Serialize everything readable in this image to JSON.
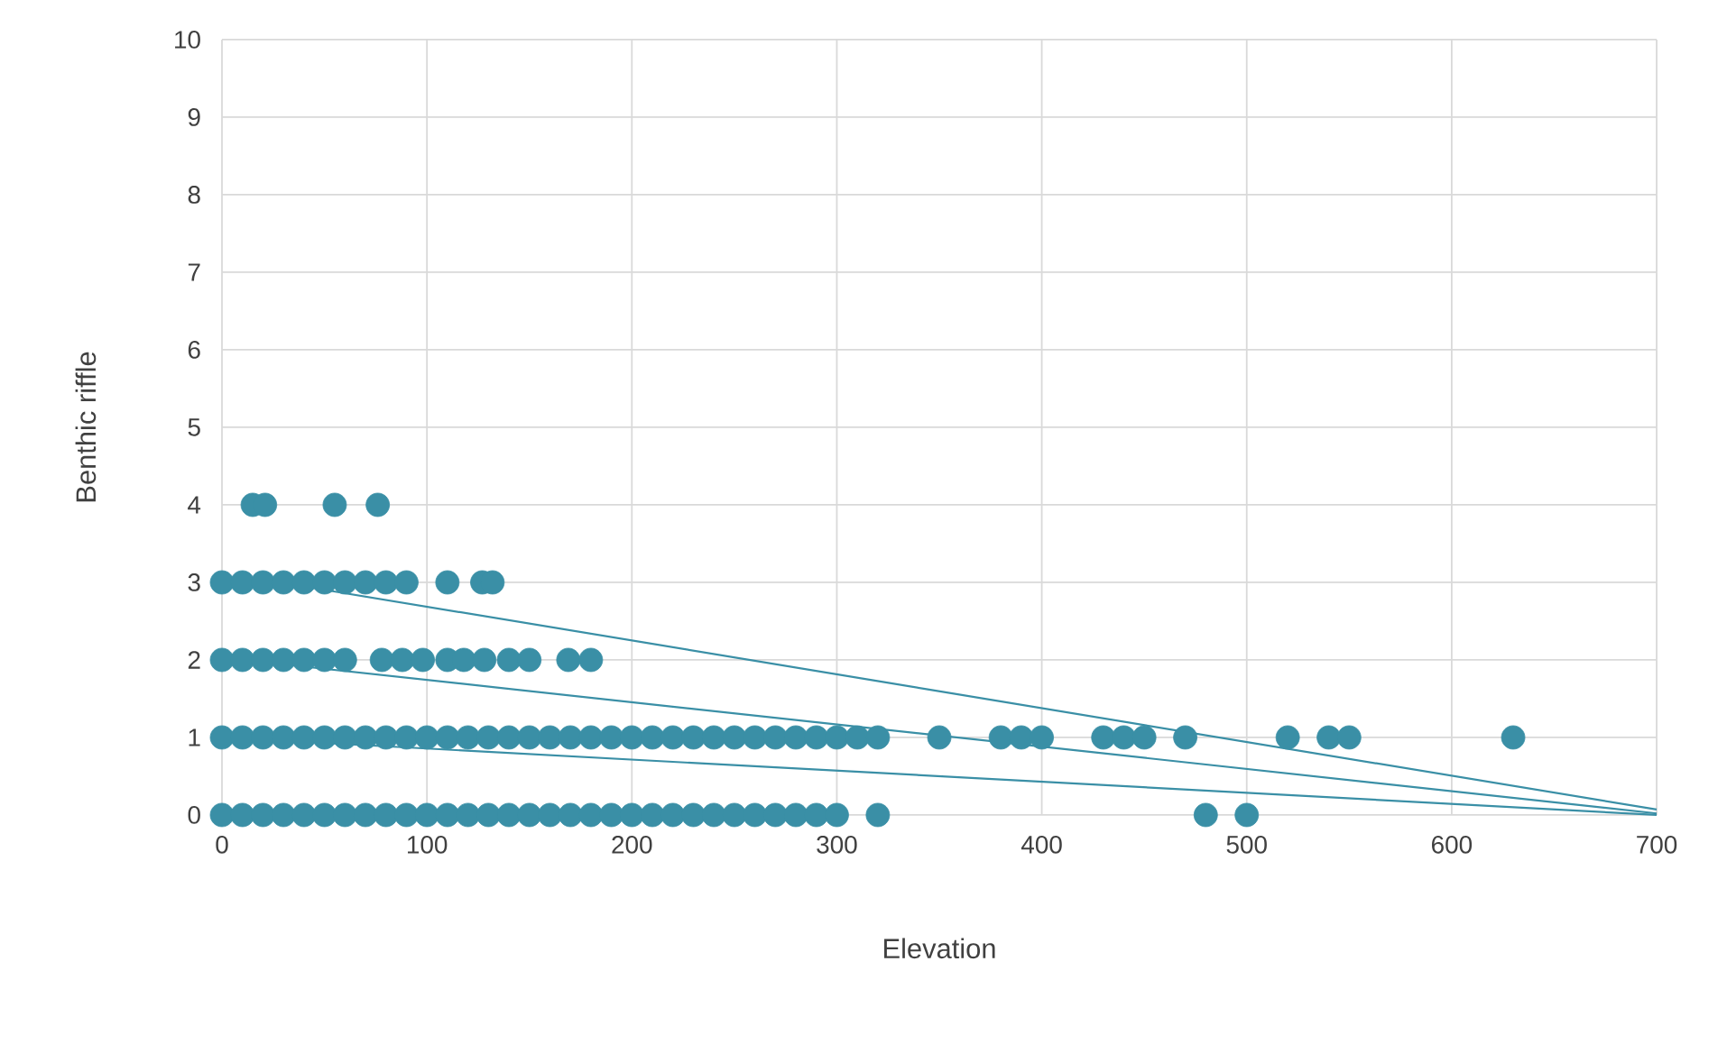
{
  "chart_data": {
    "type": "scatter",
    "xlabel": "Elevation",
    "ylabel": "Benthic riffle",
    "xlim": [
      0,
      700
    ],
    "xticks": [
      0,
      100,
      200,
      300,
      400,
      500,
      600,
      700
    ],
    "ylim": [
      0,
      10
    ],
    "yticks": [
      0,
      1,
      2,
      3,
      4,
      5,
      6,
      7,
      8,
      9,
      10
    ],
    "grid": true,
    "marker": "circle",
    "series": [
      {
        "color": "#3a8fa6",
        "x": [
          0,
          10,
          20,
          30,
          40,
          50,
          60,
          70,
          80,
          90,
          100,
          110,
          120,
          130,
          140,
          150,
          160,
          170,
          180,
          190,
          200,
          210,
          220,
          230,
          240,
          250,
          260,
          270,
          280,
          290,
          300,
          320,
          480,
          500
        ],
        "values": [
          0,
          0,
          0,
          0,
          0,
          0,
          0,
          0,
          0,
          0,
          0,
          0,
          0,
          0,
          0,
          0,
          0,
          0,
          0,
          0,
          0,
          0,
          0,
          0,
          0,
          0,
          0,
          0,
          0,
          0,
          0,
          0,
          0,
          0
        ]
      },
      {
        "color": "#3a8fa6",
        "x": [
          0,
          10,
          20,
          30,
          40,
          50,
          60,
          70,
          80,
          90,
          100,
          110,
          120,
          130,
          140,
          150,
          160,
          170,
          180,
          190,
          200,
          210,
          220,
          230,
          240,
          250,
          260,
          270,
          280,
          290,
          300,
          310,
          320,
          350,
          380,
          390,
          400,
          430,
          440,
          450,
          470,
          520,
          540,
          550,
          630
        ],
        "values": [
          1,
          1,
          1,
          1,
          1,
          1,
          1,
          1,
          1,
          1,
          1,
          1,
          1,
          1,
          1,
          1,
          1,
          1,
          1,
          1,
          1,
          1,
          1,
          1,
          1,
          1,
          1,
          1,
          1,
          1,
          1,
          1,
          1,
          1,
          1,
          1,
          1,
          1,
          1,
          1,
          1,
          1,
          1,
          1,
          1
        ]
      },
      {
        "color": "#3a8fa6",
        "x": [
          0,
          10,
          20,
          30,
          40,
          50,
          60,
          78,
          88,
          98,
          110,
          118,
          128,
          140,
          150,
          169,
          180
        ],
        "values": [
          2,
          2,
          2,
          2,
          2,
          2,
          2,
          2,
          2,
          2,
          2,
          2,
          2,
          2,
          2,
          2,
          2
        ]
      },
      {
        "color": "#3a8fa6",
        "x": [
          0,
          10,
          20,
          30,
          40,
          50,
          60,
          70,
          80,
          90,
          110,
          127,
          132
        ],
        "values": [
          3,
          3,
          3,
          3,
          3,
          3,
          3,
          3,
          3,
          3,
          3,
          3,
          3
        ]
      },
      {
        "color": "#3a8fa6",
        "x": [
          15,
          21,
          55,
          76
        ],
        "values": [
          4,
          4,
          4,
          4
        ]
      },
      {
        "type": "line",
        "marker": "none",
        "color": "#3a8fa6",
        "x": [
          28,
          700
        ],
        "values": [
          3,
          0.07
        ]
      },
      {
        "type": "line",
        "marker": "none",
        "color": "#3a8fa6",
        "x": [
          10,
          700
        ],
        "values": [
          2,
          0.02
        ]
      },
      {
        "type": "line",
        "marker": "none",
        "color": "#3a8fa6",
        "x": [
          0,
          700
        ],
        "values": [
          1,
          0
        ]
      }
    ]
  }
}
